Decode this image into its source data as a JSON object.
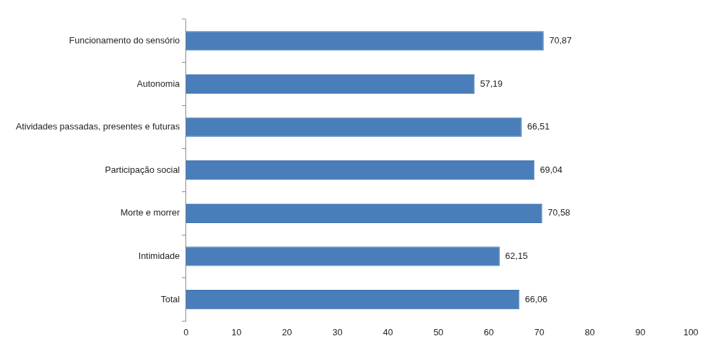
{
  "chart_data": {
    "type": "bar",
    "orientation": "horizontal",
    "categories": [
      "Funcionamento do sensório",
      "Autonomia",
      "Atividades passadas, presentes e futuras",
      "Participação social",
      "Morte e morrer",
      "Intimidade",
      "Total"
    ],
    "values": [
      70.87,
      57.19,
      66.51,
      69.04,
      70.58,
      62.15,
      66.06
    ],
    "value_labels": [
      "70,87",
      "57,19",
      "66,51",
      "69,04",
      "70,58",
      "62,15",
      "66,06"
    ],
    "color": "#4a7ebb",
    "xlim": [
      0,
      100
    ],
    "xticks": [
      0,
      10,
      20,
      30,
      40,
      50,
      60,
      70,
      80,
      90,
      100
    ],
    "grid": false,
    "legend": false
  }
}
